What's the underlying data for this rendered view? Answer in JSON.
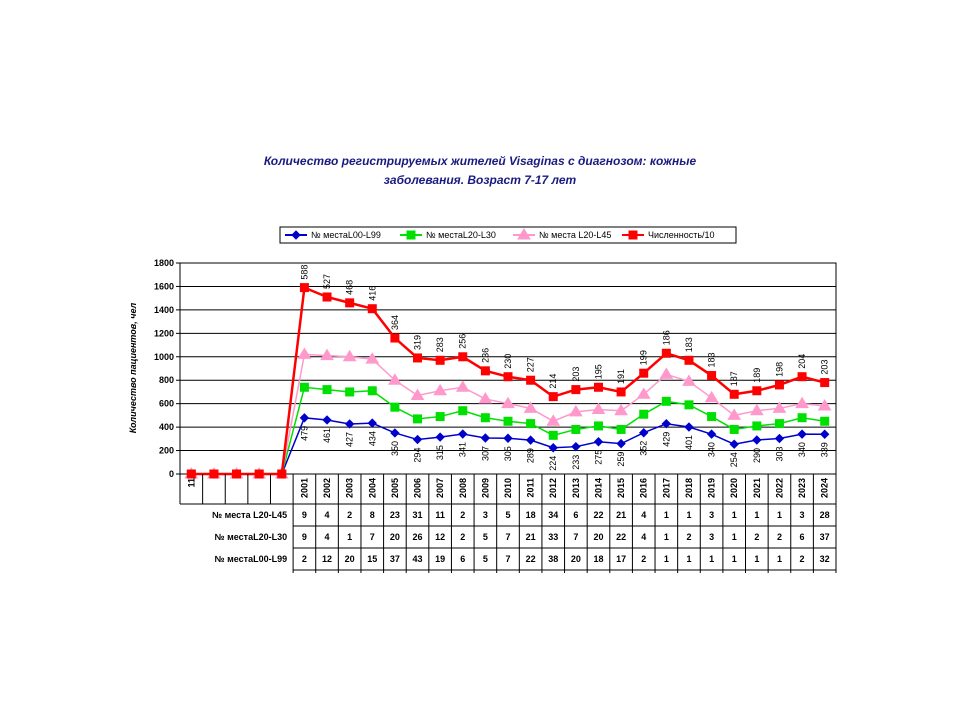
{
  "chart_data": {
    "type": "line",
    "title": "Количество регистрируемых жителей  Visaginas с диагнозом: кожные заболевания. Возраст 7-17 лет",
    "y_label": "Количество пациентов, чел",
    "categories": [
      "11",
      null,
      null,
      null,
      null,
      "2001",
      "2002",
      "2003",
      "2004",
      "2005",
      "2006",
      "2007",
      "2008",
      "2009",
      "2010",
      "2011",
      "2012",
      "2013",
      "2014",
      "2015",
      "2016",
      "2017",
      "2018",
      "2019",
      "2020",
      "2021",
      "2022",
      "2023",
      "2024"
    ],
    "ylim": [
      0,
      1800
    ],
    "yticks": [
      0,
      200,
      400,
      600,
      800,
      1000,
      1200,
      1400,
      1600,
      1800
    ],
    "grid": true,
    "series": [
      {
        "name": "№ местаL00-L99",
        "color": "#0000cc",
        "marker": "diamond",
        "values": [
          0,
          0,
          0,
          0,
          0,
          479,
          461,
          427,
          434,
          350,
          294,
          315,
          341,
          307,
          305,
          289,
          224,
          233,
          275,
          259,
          352,
          429,
          401,
          340,
          254,
          290,
          303,
          340,
          339
        ]
      },
      {
        "name": "№ местаL20-L30",
        "color": "#00e000",
        "marker": "square",
        "values": [
          0,
          0,
          0,
          0,
          0,
          740,
          720,
          700,
          710,
          570,
          470,
          490,
          540,
          480,
          450,
          430,
          330,
          380,
          410,
          380,
          510,
          620,
          590,
          490,
          380,
          410,
          430,
          480,
          450
        ]
      },
      {
        "name": "№ места L20-L45",
        "color": "#ff99cc",
        "marker": "triangle",
        "values": [
          0,
          0,
          0,
          0,
          0,
          1020,
          1010,
          1000,
          980,
          800,
          670,
          710,
          740,
          640,
          600,
          560,
          450,
          530,
          550,
          540,
          680,
          850,
          790,
          650,
          500,
          540,
          560,
          600,
          580
        ]
      },
      {
        "name": "Численность/10",
        "color": "#ff0000",
        "marker": "square",
        "values": [
          0,
          0,
          0,
          0,
          0,
          1590,
          1510,
          1460,
          1410,
          1160,
          990,
          970,
          1000,
          880,
          830,
          800,
          660,
          720,
          740,
          700,
          860,
          1030,
          970,
          840,
          680,
          710,
          760,
          830,
          780
        ],
        "labels": [
          null,
          null,
          null,
          null,
          null,
          "588",
          "527",
          "468",
          "416",
          "364",
          "319",
          "283",
          "256",
          "236",
          "230",
          "227",
          "214",
          "203",
          "195",
          "191",
          "199",
          "186",
          "183",
          "183",
          "187",
          "189",
          "198",
          "204",
          "203"
        ]
      }
    ],
    "table": {
      "rows": [
        {
          "name": "№ места L20-L45",
          "values": [
            "9",
            "4",
            "2",
            "8",
            "23",
            "31",
            "11",
            "2",
            "3",
            "5",
            "18",
            "34",
            "6",
            "22",
            "21",
            "4",
            "1",
            "1",
            "3",
            "1",
            "1",
            "1",
            "3",
            "28"
          ]
        },
        {
          "name": "№ местаL20-L30",
          "values": [
            "9",
            "4",
            "1",
            "7",
            "20",
            "26",
            "12",
            "2",
            "5",
            "7",
            "21",
            "33",
            "7",
            "20",
            "22",
            "4",
            "1",
            "2",
            "3",
            "1",
            "2",
            "2",
            "6",
            "37"
          ]
        },
        {
          "name": "№ местаL00-L99",
          "values": [
            "2",
            "12",
            "20",
            "15",
            "37",
            "43",
            "19",
            "6",
            "5",
            "7",
            "22",
            "38",
            "20",
            "18",
            "17",
            "2",
            "1",
            "1",
            "1",
            "1",
            "1",
            "1",
            "2",
            "32"
          ]
        }
      ]
    }
  }
}
